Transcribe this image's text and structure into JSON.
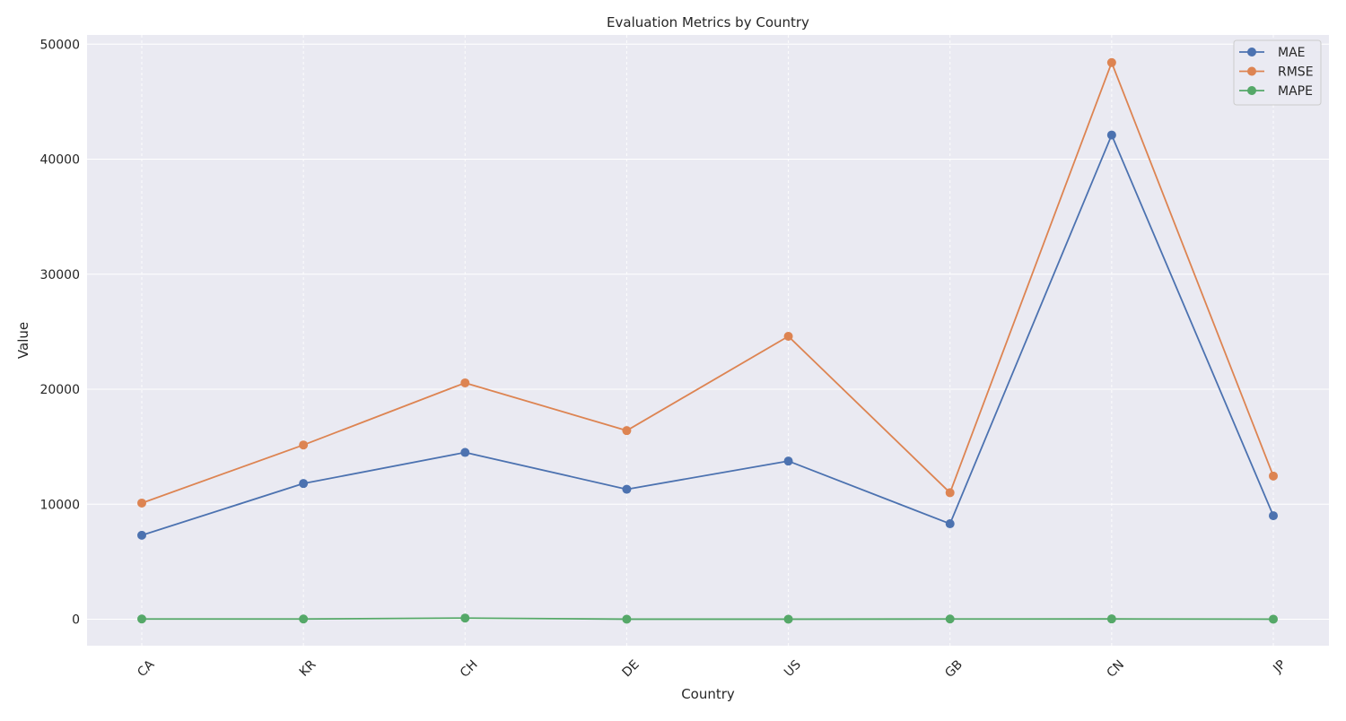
{
  "chart_data": {
    "type": "line",
    "title": "Evaluation Metrics by Country",
    "xlabel": "Country",
    "ylabel": "Value",
    "categories": [
      "CA",
      "KR",
      "CH",
      "DE",
      "US",
      "GB",
      "CN",
      "JP"
    ],
    "series": [
      {
        "name": "MAE",
        "color": "#4c72b0",
        "values": [
          7300,
          11800,
          14500,
          11300,
          13750,
          8300,
          42100,
          9000
        ]
      },
      {
        "name": "RMSE",
        "color": "#dd8452",
        "values": [
          10100,
          15150,
          20550,
          16400,
          24600,
          11000,
          48400,
          12450
        ]
      },
      {
        "name": "MAPE",
        "color": "#55a868",
        "values": [
          20,
          20,
          100,
          5,
          5,
          20,
          25,
          5
        ]
      }
    ],
    "ylim": [
      -2300,
      50800
    ],
    "yticks": [
      0,
      10000,
      20000,
      30000,
      40000,
      50000
    ],
    "ytick_labels": [
      "0",
      "10000",
      "20000",
      "30000",
      "40000",
      "50000"
    ],
    "grid": true,
    "legend_position": "top-right",
    "plot_background": "#eaeaf2",
    "grid_color": "#ffffff"
  }
}
